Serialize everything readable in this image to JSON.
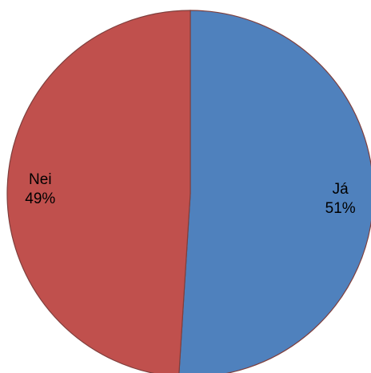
{
  "chart_data": {
    "type": "pie",
    "categories": [
      "Já",
      "Nei"
    ],
    "values": [
      51,
      49
    ],
    "value_labels": [
      "51%",
      "49%"
    ],
    "colors": [
      "#4f81bd",
      "#c0504d"
    ]
  }
}
